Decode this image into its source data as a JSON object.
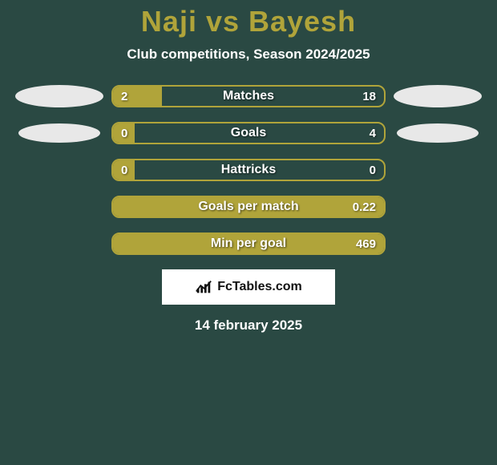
{
  "title": "Naji vs Bayesh",
  "subtitle": "Club competitions, Season 2024/2025",
  "title_color": "#b0a43a",
  "accent_color": "#b0a43a",
  "background_color": "#2a4943",
  "bars": [
    {
      "label": "Matches",
      "left": "2",
      "right": "18",
      "fill_pct": 18,
      "show_left_oval": true,
      "oval_small": false
    },
    {
      "label": "Goals",
      "left": "0",
      "right": "4",
      "fill_pct": 8,
      "show_left_oval": true,
      "oval_small": true
    },
    {
      "label": "Hattricks",
      "left": "0",
      "right": "0",
      "fill_pct": 8,
      "show_left_oval": false,
      "oval_small": false
    },
    {
      "label": "Goals per match",
      "left": "",
      "right": "0.22",
      "fill_pct": 100,
      "show_left_oval": false,
      "oval_small": false
    },
    {
      "label": "Min per goal",
      "left": "",
      "right": "469",
      "fill_pct": 100,
      "show_left_oval": false,
      "oval_small": false
    }
  ],
  "brand": "FcTables.com",
  "date": "14 february 2025"
}
